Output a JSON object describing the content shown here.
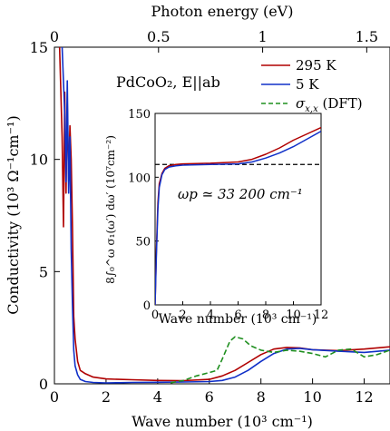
{
  "chart_data": [
    {
      "type": "line",
      "xlabel": "Wave number (10³ cm⁻¹)",
      "ylabel": "Conductivity (10³ Ω⁻¹cm⁻¹)",
      "top_xlabel": "Photon energy (eV)",
      "annotation": "PdCoO₂, E||ab",
      "xlim": [
        0,
        13
      ],
      "ylim": [
        0,
        15
      ],
      "xticks": [
        "0",
        "2",
        "4",
        "6",
        "8",
        "10",
        "12"
      ],
      "yticks": [
        "0",
        "5",
        "10",
        "15"
      ],
      "top_ticks": [
        "0",
        "0.5",
        "1",
        "1.5"
      ],
      "top_tick_values_cm": [
        0,
        4.033,
        8.066,
        12.099
      ],
      "legend_position": "top-right",
      "series": [
        {
          "name": "295 K",
          "color": "#b00000",
          "dash": "solid",
          "x": [
            0.2,
            0.3,
            0.35,
            0.4,
            0.45,
            0.5,
            0.55,
            0.6,
            0.65,
            0.7,
            0.75,
            0.8,
            0.9,
            1.0,
            1.2,
            1.5,
            2.0,
            2.5,
            3.0,
            4.0,
            5.0,
            6.0,
            6.5,
            7.0,
            7.5,
            8.0,
            8.5,
            9.0,
            9.5,
            10.0,
            11.0,
            12.0,
            13.0
          ],
          "y": [
            15,
            11,
            7.0,
            13,
            8.5,
            12.5,
            9.0,
            11.5,
            10.0,
            7.0,
            3.0,
            2.0,
            1.0,
            0.6,
            0.45,
            0.3,
            0.22,
            0.2,
            0.18,
            0.15,
            0.14,
            0.2,
            0.35,
            0.6,
            0.95,
            1.3,
            1.55,
            1.62,
            1.6,
            1.52,
            1.48,
            1.55,
            1.65
          ]
        },
        {
          "name": "5 K",
          "color": "#1030c8",
          "dash": "solid",
          "x": [
            0.3,
            0.4,
            0.45,
            0.5,
            0.55,
            0.6,
            0.65,
            0.7,
            0.75,
            0.8,
            0.9,
            1.0,
            1.2,
            1.5,
            2.0,
            2.5,
            3.0,
            4.0,
            5.0,
            6.0,
            6.5,
            7.0,
            7.5,
            8.0,
            8.5,
            9.0,
            9.5,
            10.0,
            11.0,
            12.0,
            13.0
          ],
          "y": [
            15,
            12,
            9.0,
            13.5,
            8.5,
            11.0,
            6.0,
            3.5,
            1.5,
            0.8,
            0.4,
            0.2,
            0.1,
            0.06,
            0.04,
            0.05,
            0.06,
            0.07,
            0.08,
            0.1,
            0.15,
            0.3,
            0.6,
            1.0,
            1.35,
            1.55,
            1.58,
            1.52,
            1.45,
            1.4,
            1.5
          ]
        },
        {
          "name": "σx,x (DFT)",
          "name_text": "σ",
          "name_sub": "x,x",
          "name_suffix": " (DFT)",
          "color": "#1f8f1f",
          "dash": "dashed",
          "x": [
            4.5,
            5.0,
            5.5,
            6.0,
            6.3,
            6.5,
            6.8,
            7.0,
            7.3,
            7.6,
            8.0,
            8.5,
            9.0,
            9.5,
            10.0,
            10.5,
            11.0,
            11.5,
            12.0,
            12.5,
            13.0
          ],
          "y": [
            0.05,
            0.15,
            0.35,
            0.5,
            0.6,
            1.1,
            1.9,
            2.1,
            2.0,
            1.7,
            1.5,
            1.4,
            1.5,
            1.45,
            1.35,
            1.2,
            1.5,
            1.55,
            1.2,
            1.3,
            1.5
          ]
        }
      ]
    },
    {
      "type": "line",
      "inset": true,
      "xlabel": "Wave number (10³ cm⁻¹)",
      "ylabel": "8∫₀^ω σ₁(ω′) dω′ (10⁷cm⁻²)",
      "annotation": "ωp ≃ 33 200 cm⁻¹",
      "xlim": [
        0,
        12
      ],
      "ylim": [
        0,
        150
      ],
      "xticks": [
        "0",
        "2",
        "4",
        "6",
        "8",
        "10",
        "12"
      ],
      "yticks": [
        "0",
        "50",
        "100",
        "150"
      ],
      "reference_line": 110,
      "series": [
        {
          "name": "295 K",
          "color": "#b00000",
          "x": [
            0,
            0.1,
            0.2,
            0.3,
            0.5,
            0.7,
            1.0,
            1.5,
            2.0,
            4.0,
            6.0,
            7.0,
            8.0,
            9.0,
            10.0,
            11.0,
            12.0
          ],
          "y": [
            0,
            45,
            80,
            95,
            103,
            107,
            109,
            110,
            110.5,
            111,
            112,
            114,
            118,
            123,
            129,
            134,
            139
          ]
        },
        {
          "name": "5 K",
          "color": "#1030c8",
          "x": [
            0,
            0.1,
            0.2,
            0.3,
            0.5,
            0.7,
            1.0,
            1.5,
            2.0,
            4.0,
            6.0,
            7.0,
            8.0,
            9.0,
            10.0,
            11.0,
            12.0
          ],
          "y": [
            0,
            40,
            75,
            92,
            102,
            106,
            108,
            109,
            109.5,
            110,
            110.5,
            112,
            115,
            119,
            124,
            130,
            136
          ]
        }
      ]
    }
  ]
}
